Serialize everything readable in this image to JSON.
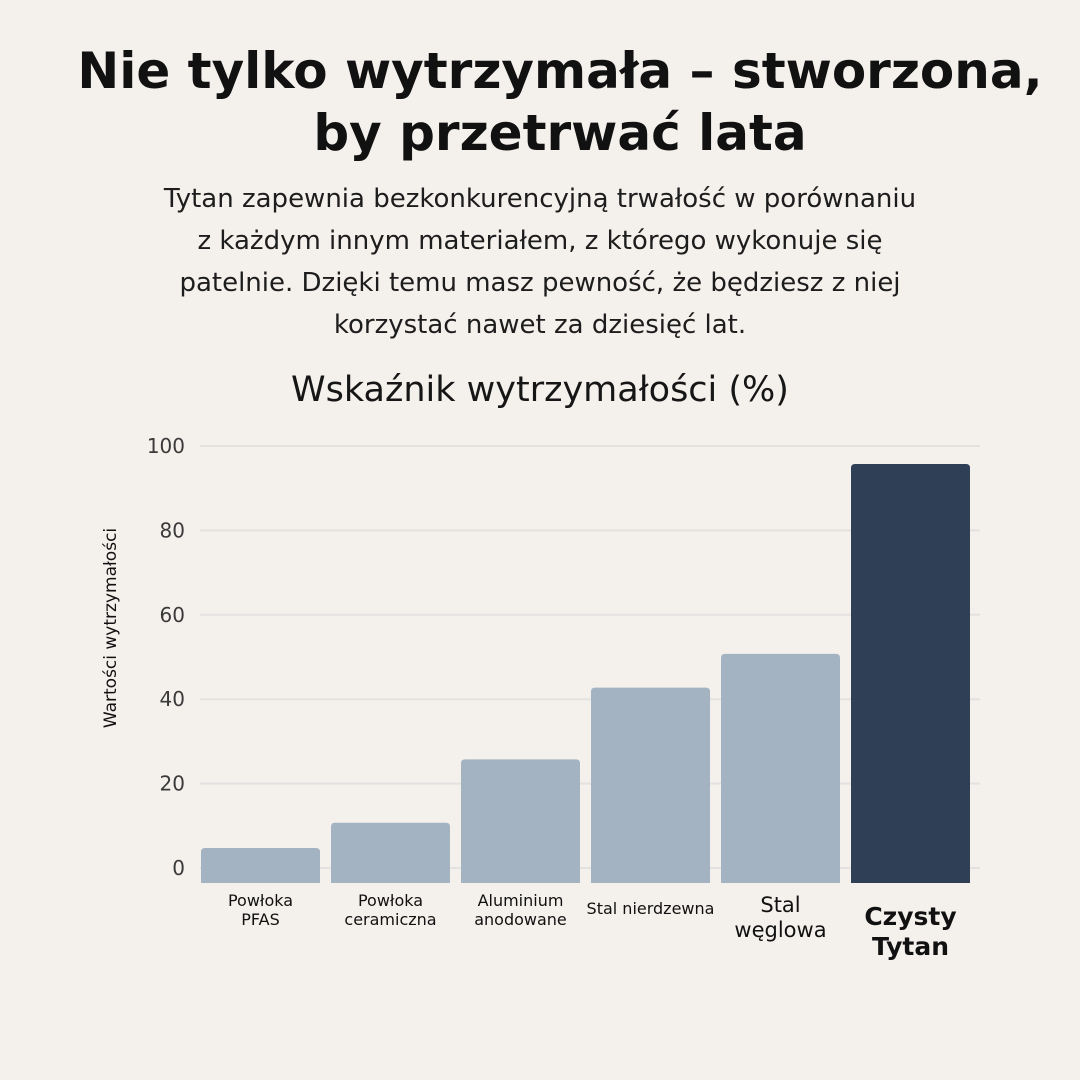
{
  "header": {
    "title": "Nie tylko wytrzymała – stworzona, by przetrwać lata",
    "description_lines": [
      "Tytan zapewnia bezkonkurencyjną trwałość w porównaniu",
      "z każdym innym materiałem, z którego wykonuje się",
      "patelnie. Dzięki temu masz pewność, że będziesz z niej",
      "korzystać nawet za dziesięć lat."
    ]
  },
  "colors": {
    "background": "#f4f0ec",
    "bar": "#a3b3c2",
    "highlight_bar": "#2f3f56",
    "grid": "#e4e2e0"
  },
  "chart_data": {
    "type": "bar",
    "title": "Wskaźnik wytrzymałości (%)",
    "xlabel": "",
    "ylabel": "Wartości wytrzymałości",
    "ylim": [
      0,
      100
    ],
    "yticks": [
      0,
      20,
      40,
      60,
      80,
      100
    ],
    "grid": true,
    "categories": [
      [
        "Powłoka",
        "PFAS"
      ],
      [
        "Powłoka",
        "ceramiczna"
      ],
      [
        "Aluminium",
        "anodowane"
      ],
      [
        "Stal nierdzewna"
      ],
      [
        "Stal",
        "węglowa"
      ],
      [
        "Czysty",
        "Tytan"
      ]
    ],
    "values": [
      9,
      15,
      30,
      47,
      55,
      100
    ],
    "highlight_index": 5
  }
}
